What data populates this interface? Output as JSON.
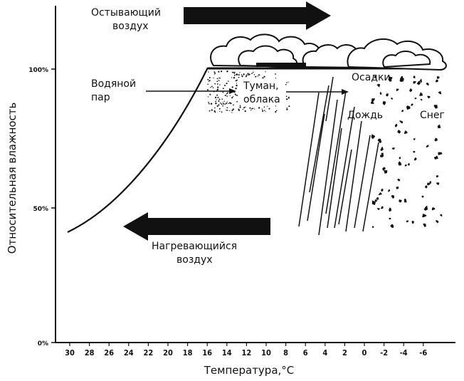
{
  "diagram": {
    "y_axis_label": "Относительная влажность",
    "x_axis_label": "Температура,°С",
    "y_ticks": [
      "100%",
      "50%",
      "0%"
    ],
    "x_ticks": [
      "30",
      "28",
      "26",
      "24",
      "22",
      "20",
      "18",
      "16",
      "14",
      "12",
      "10",
      "8",
      "6",
      "4",
      "2",
      "0",
      "-2",
      "-4",
      "-6"
    ],
    "cooling_air": {
      "line1": "Остывающий",
      "line2": "воздух"
    },
    "warming_air": {
      "line1": "Нагревающийся",
      "line2": "воздух"
    },
    "water_vapor": {
      "line1": "Водяной",
      "line2": "пар"
    },
    "fog_clouds": {
      "line1": "Туман,",
      "line2": "облака"
    },
    "precipitation": "Осадки",
    "rain": "Дождь",
    "snow": "Снег"
  }
}
